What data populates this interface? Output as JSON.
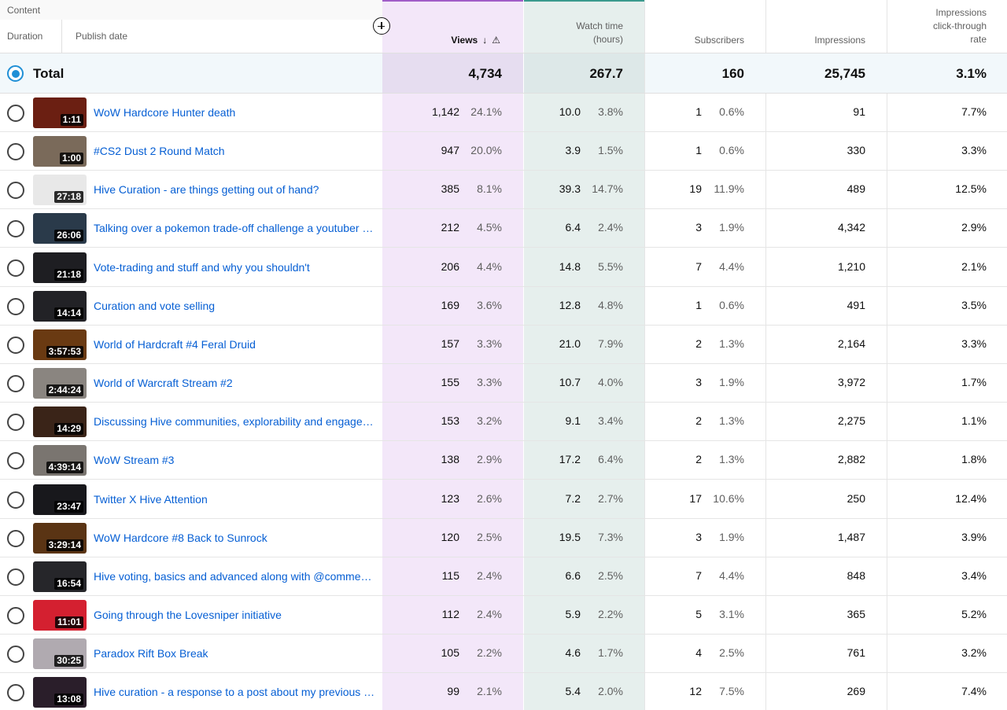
{
  "header": {
    "content_label": "Content",
    "duration_label": "Duration",
    "publish_label": "Publish date",
    "views_label": "Views",
    "sort_arrow": "↓",
    "warn_icon": "⚠",
    "watch_line1": "Watch time",
    "watch_line2": "(hours)",
    "subs_label": "Subscribers",
    "impr_label": "Impressions",
    "ctr_line1": "Impressions",
    "ctr_line2": "click-through",
    "ctr_line3": "rate"
  },
  "total": {
    "label": "Total",
    "views": "4,734",
    "watch": "267.7",
    "subs": "160",
    "impr": "25,745",
    "ctr": "3.1%"
  },
  "colors": {
    "accent": "#1f8fd6",
    "link": "#065fd4",
    "views_col": "#f3e7f9",
    "watch_col": "#e6efed"
  },
  "rows": [
    {
      "dur": "1:11",
      "title": "WoW Hardcore Hunter death",
      "views": "1,142",
      "views_pct": "24.1%",
      "watch": "10.0",
      "watch_pct": "3.8%",
      "subs": "1",
      "subs_pct": "0.6%",
      "impr": "91",
      "ctr": "7.7%",
      "thumb_color": "#6b1f12"
    },
    {
      "dur": "1:00",
      "title": "#CS2 Dust 2 Round Match",
      "views": "947",
      "views_pct": "20.0%",
      "watch": "3.9",
      "watch_pct": "1.5%",
      "subs": "1",
      "subs_pct": "0.6%",
      "impr": "330",
      "ctr": "3.3%",
      "thumb_color": "#7a6a5a"
    },
    {
      "dur": "27:18",
      "title": "Hive Curation - are things getting out of hand?",
      "views": "385",
      "views_pct": "8.1%",
      "watch": "39.3",
      "watch_pct": "14.7%",
      "subs": "19",
      "subs_pct": "11.9%",
      "impr": "489",
      "ctr": "12.5%",
      "thumb_color": "#e8e8e8"
    },
    {
      "dur": "26:06",
      "title": "Talking over a pokemon trade-off challenge a youtuber …",
      "views": "212",
      "views_pct": "4.5%",
      "watch": "6.4",
      "watch_pct": "2.4%",
      "subs": "3",
      "subs_pct": "1.9%",
      "impr": "4,342",
      "ctr": "2.9%",
      "thumb_color": "#2a3a4a"
    },
    {
      "dur": "21:18",
      "title": "Vote-trading and stuff and why you shouldn't",
      "views": "206",
      "views_pct": "4.4%",
      "watch": "14.8",
      "watch_pct": "5.5%",
      "subs": "7",
      "subs_pct": "4.4%",
      "impr": "1,210",
      "ctr": "2.1%",
      "thumb_color": "#1e1e22"
    },
    {
      "dur": "14:14",
      "title": "Curation and vote selling",
      "views": "169",
      "views_pct": "3.6%",
      "watch": "12.8",
      "watch_pct": "4.8%",
      "subs": "1",
      "subs_pct": "0.6%",
      "impr": "491",
      "ctr": "3.5%",
      "thumb_color": "#222226"
    },
    {
      "dur": "3:57:53",
      "title": "World of Hardcraft #4 Feral Druid",
      "views": "157",
      "views_pct": "3.3%",
      "watch": "21.0",
      "watch_pct": "7.9%",
      "subs": "2",
      "subs_pct": "1.3%",
      "impr": "2,164",
      "ctr": "3.3%",
      "thumb_color": "#6a3a12"
    },
    {
      "dur": "2:44:24",
      "title": "World of Warcraft Stream #2",
      "views": "155",
      "views_pct": "3.3%",
      "watch": "10.7",
      "watch_pct": "4.0%",
      "subs": "3",
      "subs_pct": "1.9%",
      "impr": "3,972",
      "ctr": "1.7%",
      "thumb_color": "#8a8580"
    },
    {
      "dur": "14:29",
      "title": "Discussing Hive communities, explorability and engage…",
      "views": "153",
      "views_pct": "3.2%",
      "watch": "9.1",
      "watch_pct": "3.4%",
      "subs": "2",
      "subs_pct": "1.3%",
      "impr": "2,275",
      "ctr": "1.1%",
      "thumb_color": "#3a2418"
    },
    {
      "dur": "4:39:14",
      "title": "WoW Stream #3",
      "views": "138",
      "views_pct": "2.9%",
      "watch": "17.2",
      "watch_pct": "6.4%",
      "subs": "2",
      "subs_pct": "1.3%",
      "impr": "2,882",
      "ctr": "1.8%",
      "thumb_color": "#7a7570"
    },
    {
      "dur": "23:47",
      "title": "Twitter X Hive Attention",
      "views": "123",
      "views_pct": "2.6%",
      "watch": "7.2",
      "watch_pct": "2.7%",
      "subs": "17",
      "subs_pct": "10.6%",
      "impr": "250",
      "ctr": "12.4%",
      "thumb_color": "#18181c"
    },
    {
      "dur": "3:29:14",
      "title": "WoW Hardcore #8 Back to Sunrock",
      "views": "120",
      "views_pct": "2.5%",
      "watch": "19.5",
      "watch_pct": "7.3%",
      "subs": "3",
      "subs_pct": "1.9%",
      "impr": "1,487",
      "ctr": "3.9%",
      "thumb_color": "#5a3414"
    },
    {
      "dur": "16:54",
      "title": "Hive voting, basics and advanced along with @comme…",
      "views": "115",
      "views_pct": "2.4%",
      "watch": "6.6",
      "watch_pct": "2.5%",
      "subs": "7",
      "subs_pct": "4.4%",
      "impr": "848",
      "ctr": "3.4%",
      "thumb_color": "#26262a"
    },
    {
      "dur": "11:01",
      "title": "Going through the Lovesniper initiative",
      "views": "112",
      "views_pct": "2.4%",
      "watch": "5.9",
      "watch_pct": "2.2%",
      "subs": "5",
      "subs_pct": "3.1%",
      "impr": "365",
      "ctr": "5.2%",
      "thumb_color": "#d42030"
    },
    {
      "dur": "30:25",
      "title": "Paradox Rift Box Break",
      "views": "105",
      "views_pct": "2.2%",
      "watch": "4.6",
      "watch_pct": "1.7%",
      "subs": "4",
      "subs_pct": "2.5%",
      "impr": "761",
      "ctr": "3.2%",
      "thumb_color": "#b0aab0"
    },
    {
      "dur": "13:08",
      "title": "Hive curation - a response to a post about my previous …",
      "views": "99",
      "views_pct": "2.1%",
      "watch": "5.4",
      "watch_pct": "2.0%",
      "subs": "12",
      "subs_pct": "7.5%",
      "impr": "269",
      "ctr": "7.4%",
      "thumb_color": "#2a1e2a"
    }
  ]
}
